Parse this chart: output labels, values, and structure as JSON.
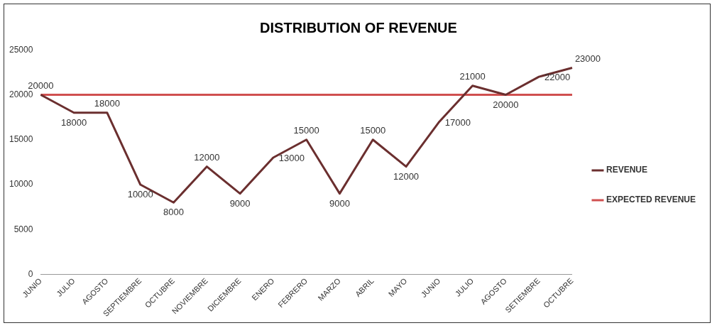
{
  "chart_data": {
    "type": "line",
    "title": "DISTRIBUTION OF REVENUE",
    "categories": [
      "JUNIO",
      "JULIO",
      "AGOSTO",
      "SEPTIEMBRE",
      "OCTUBRE",
      "NOVIEMBRE",
      "DICIEMBRE",
      "ENERO",
      "FEBRERO",
      "MARZO",
      "ABRIL",
      "MAYO",
      "JUNIO",
      "JULIO",
      "AGOSTO",
      "SETIEMBRE",
      "OCTUBRE"
    ],
    "series": [
      {
        "name": "REVENUE",
        "color": "#6b2f2f",
        "values": [
          20000,
          18000,
          18000,
          10000,
          8000,
          12000,
          9000,
          13000,
          15000,
          9000,
          15000,
          12000,
          17000,
          21000,
          20000,
          22000,
          23000
        ],
        "value_labels": [
          "20000",
          "18000",
          "18000",
          "10000",
          "8000",
          "12000",
          "9000",
          "13000",
          "15000",
          "9000",
          "15000",
          "12000",
          "17000",
          "21000",
          "20000",
          "22000",
          "23000"
        ]
      },
      {
        "name": "EXPECTED REVENUE",
        "color": "#d05050",
        "values": [
          20000,
          20000,
          20000,
          20000,
          20000,
          20000,
          20000,
          20000,
          20000,
          20000,
          20000,
          20000,
          20000,
          20000,
          20000,
          20000,
          20000
        ]
      }
    ],
    "ylim": [
      0,
      25000
    ],
    "yticks": [
      0,
      5000,
      10000,
      15000,
      20000,
      25000
    ],
    "grid": false,
    "legend": "right",
    "marker": "none",
    "line_style": "solid"
  }
}
